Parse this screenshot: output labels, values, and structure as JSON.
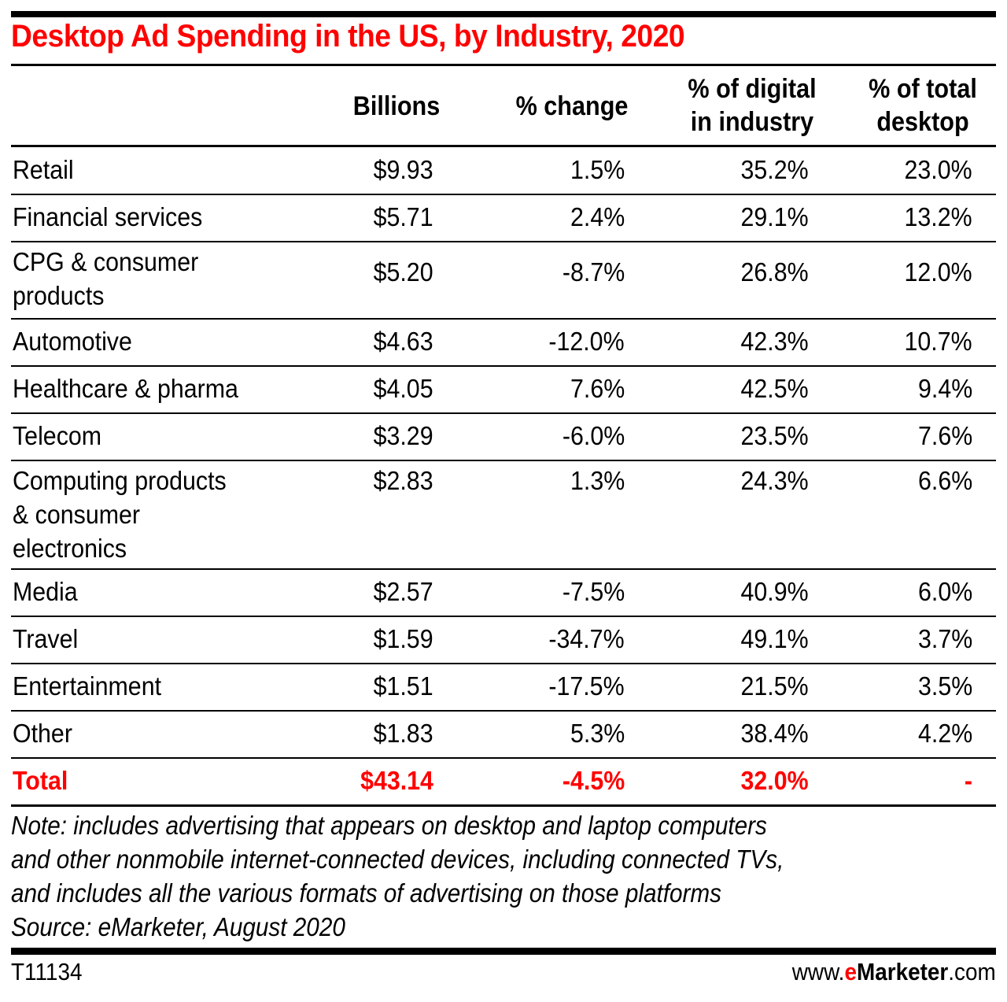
{
  "chart_data": {
    "type": "table",
    "title": "Desktop Ad Spending in the US, by Industry, 2020",
    "columns": [
      {
        "label_lines": [
          "Billions"
        ]
      },
      {
        "label_lines": [
          "% change"
        ]
      },
      {
        "label_lines": [
          "% of digital",
          "in industry"
        ]
      },
      {
        "label_lines": [
          "% of total",
          "desktop"
        ]
      }
    ],
    "rows": [
      {
        "label_lines": [
          "Retail"
        ],
        "values": [
          "$9.93",
          "1.5%",
          "35.2%",
          "23.0%"
        ]
      },
      {
        "label_lines": [
          "Financial services"
        ],
        "values": [
          "$5.71",
          "2.4%",
          "29.1%",
          "13.2%"
        ]
      },
      {
        "label_lines": [
          "CPG & consumer",
          "products"
        ],
        "values": [
          "$5.20",
          "-8.7%",
          "26.8%",
          "12.0%"
        ]
      },
      {
        "label_lines": [
          "Automotive"
        ],
        "values": [
          "$4.63",
          "-12.0%",
          "42.3%",
          "10.7%"
        ]
      },
      {
        "label_lines": [
          "Healthcare & pharma"
        ],
        "values": [
          "$4.05",
          "7.6%",
          "42.5%",
          "9.4%"
        ]
      },
      {
        "label_lines": [
          "Telecom"
        ],
        "values": [
          "$3.29",
          "-6.0%",
          "23.5%",
          "7.6%"
        ]
      },
      {
        "label_lines": [
          "Computing products",
          "& consumer",
          "electronics"
        ],
        "values": [
          "$2.83",
          "1.3%",
          "24.3%",
          "6.6%"
        ]
      },
      {
        "label_lines": [
          "Media"
        ],
        "values": [
          "$2.57",
          "-7.5%",
          "40.9%",
          "6.0%"
        ]
      },
      {
        "label_lines": [
          "Travel"
        ],
        "values": [
          "$1.59",
          "-34.7%",
          "49.1%",
          "3.7%"
        ]
      },
      {
        "label_lines": [
          "Entertainment"
        ],
        "values": [
          "$1.51",
          "-17.5%",
          "21.5%",
          "3.5%"
        ]
      },
      {
        "label_lines": [
          "Other"
        ],
        "values": [
          "$1.83",
          "5.3%",
          "38.4%",
          "4.2%"
        ]
      }
    ],
    "total": {
      "label": "Total",
      "values": [
        "$43.14",
        "-4.5%",
        "32.0%",
        "-"
      ]
    },
    "numeric": {
      "billions": [
        9.93,
        5.71,
        5.2,
        4.63,
        4.05,
        3.29,
        2.83,
        2.57,
        1.59,
        1.51,
        1.83
      ],
      "pct_change": [
        1.5,
        2.4,
        -8.7,
        -12.0,
        7.6,
        -6.0,
        1.3,
        -7.5,
        -34.7,
        -17.5,
        5.3
      ],
      "pct_of_digital_in_industry": [
        35.2,
        29.1,
        26.8,
        42.3,
        42.5,
        23.5,
        24.3,
        40.9,
        49.1,
        21.5,
        38.4
      ],
      "pct_of_total_desktop": [
        23.0,
        13.2,
        12.0,
        10.7,
        9.4,
        7.6,
        6.6,
        6.0,
        3.7,
        3.5,
        4.2
      ]
    }
  },
  "note_lines": [
    "Note: includes advertising that appears on desktop and laptop computers",
    "and other nonmobile internet-connected devices, including connected TVs,",
    "and includes all the various formats of advertising on those platforms",
    "Source: eMarketer, August 2020"
  ],
  "footer": {
    "chart_id": "T11134",
    "brand_prefix": "www.",
    "brand_e": "e",
    "brand_main": "Marketer",
    "brand_suffix": ".com"
  },
  "colors": {
    "accent": "#ff0000",
    "text": "#000000"
  }
}
